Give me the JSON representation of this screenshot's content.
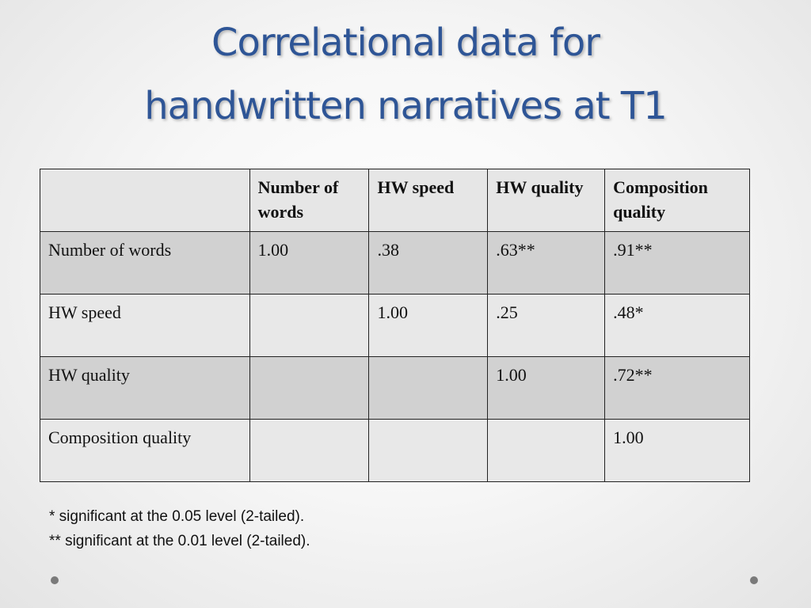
{
  "title": {
    "line1": "Correlational data for",
    "line2": "handwritten narratives at T1"
  },
  "table": {
    "headers": [
      "",
      "Number of words",
      "HW speed",
      "HW quality",
      "Composition quality"
    ],
    "rows": [
      [
        "Number of words",
        "1.00",
        ".38",
        ".63**",
        ".91**"
      ],
      [
        "HW speed",
        "",
        "1.00",
        ".25",
        ".48*"
      ],
      [
        "HW quality",
        "",
        "",
        "1.00",
        ".72**"
      ],
      [
        "Composition quality",
        "",
        "",
        "",
        "1.00"
      ]
    ]
  },
  "footnotes": [
    "* significant at the 0.05 level (2-tailed).",
    "** significant at the 0.01 level (2-tailed)."
  ]
}
